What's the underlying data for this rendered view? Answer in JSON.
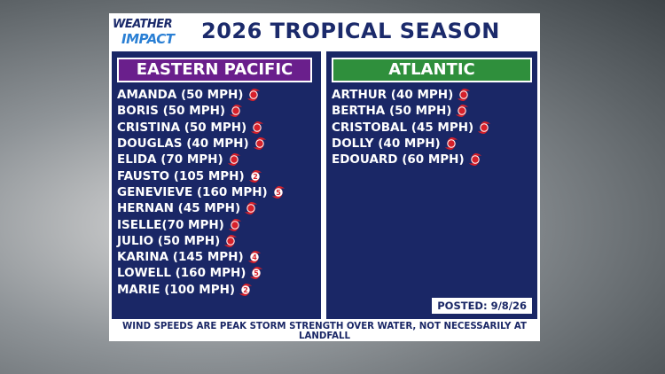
{
  "header": {
    "logo_top": "WEATHER",
    "logo_bottom": "IMPACT",
    "title": "2026 TROPICAL SEASON"
  },
  "panels": [
    {
      "heading": "EASTERN PACIFIC",
      "storms": [
        {
          "label": "AMANDA (50 MPH)"
        },
        {
          "label": "BORIS (50 MPH)"
        },
        {
          "label": "CRISTINA (50 MPH)"
        },
        {
          "label": "DOUGLAS (40 MPH)"
        },
        {
          "label": "ELIDA (70 MPH)"
        },
        {
          "label": "FAUSTO (105 MPH)",
          "category": "2"
        },
        {
          "label": "GENEVIEVE (160 MPH)",
          "category": "5"
        },
        {
          "label": "HERNAN (45 MPH)"
        },
        {
          "label": "ISELLE(70 MPH)"
        },
        {
          "label": "JULIO (50 MPH)"
        },
        {
          "label": "KARINA (145 MPH)",
          "category": "4"
        },
        {
          "label": "LOWELL (160 MPH)",
          "category": "5"
        },
        {
          "label": "MARIE (100 MPH)",
          "category": "2"
        }
      ]
    },
    {
      "heading": "ATLANTIC",
      "storms": [
        {
          "label": "ARTHUR (40 MPH)"
        },
        {
          "label": "BERTHA (50 MPH)"
        },
        {
          "label": "CRISTOBAL (45 MPH)"
        },
        {
          "label": "DOLLY (40 MPH)"
        },
        {
          "label": "EDOUARD (60 MPH)"
        }
      ]
    }
  ],
  "posted": "POSTED: 9/8/26",
  "footnote": "WIND SPEEDS ARE PEAK STORM STRENGTH OVER WATER, NOT NECESSARILY AT LANDFALL"
}
